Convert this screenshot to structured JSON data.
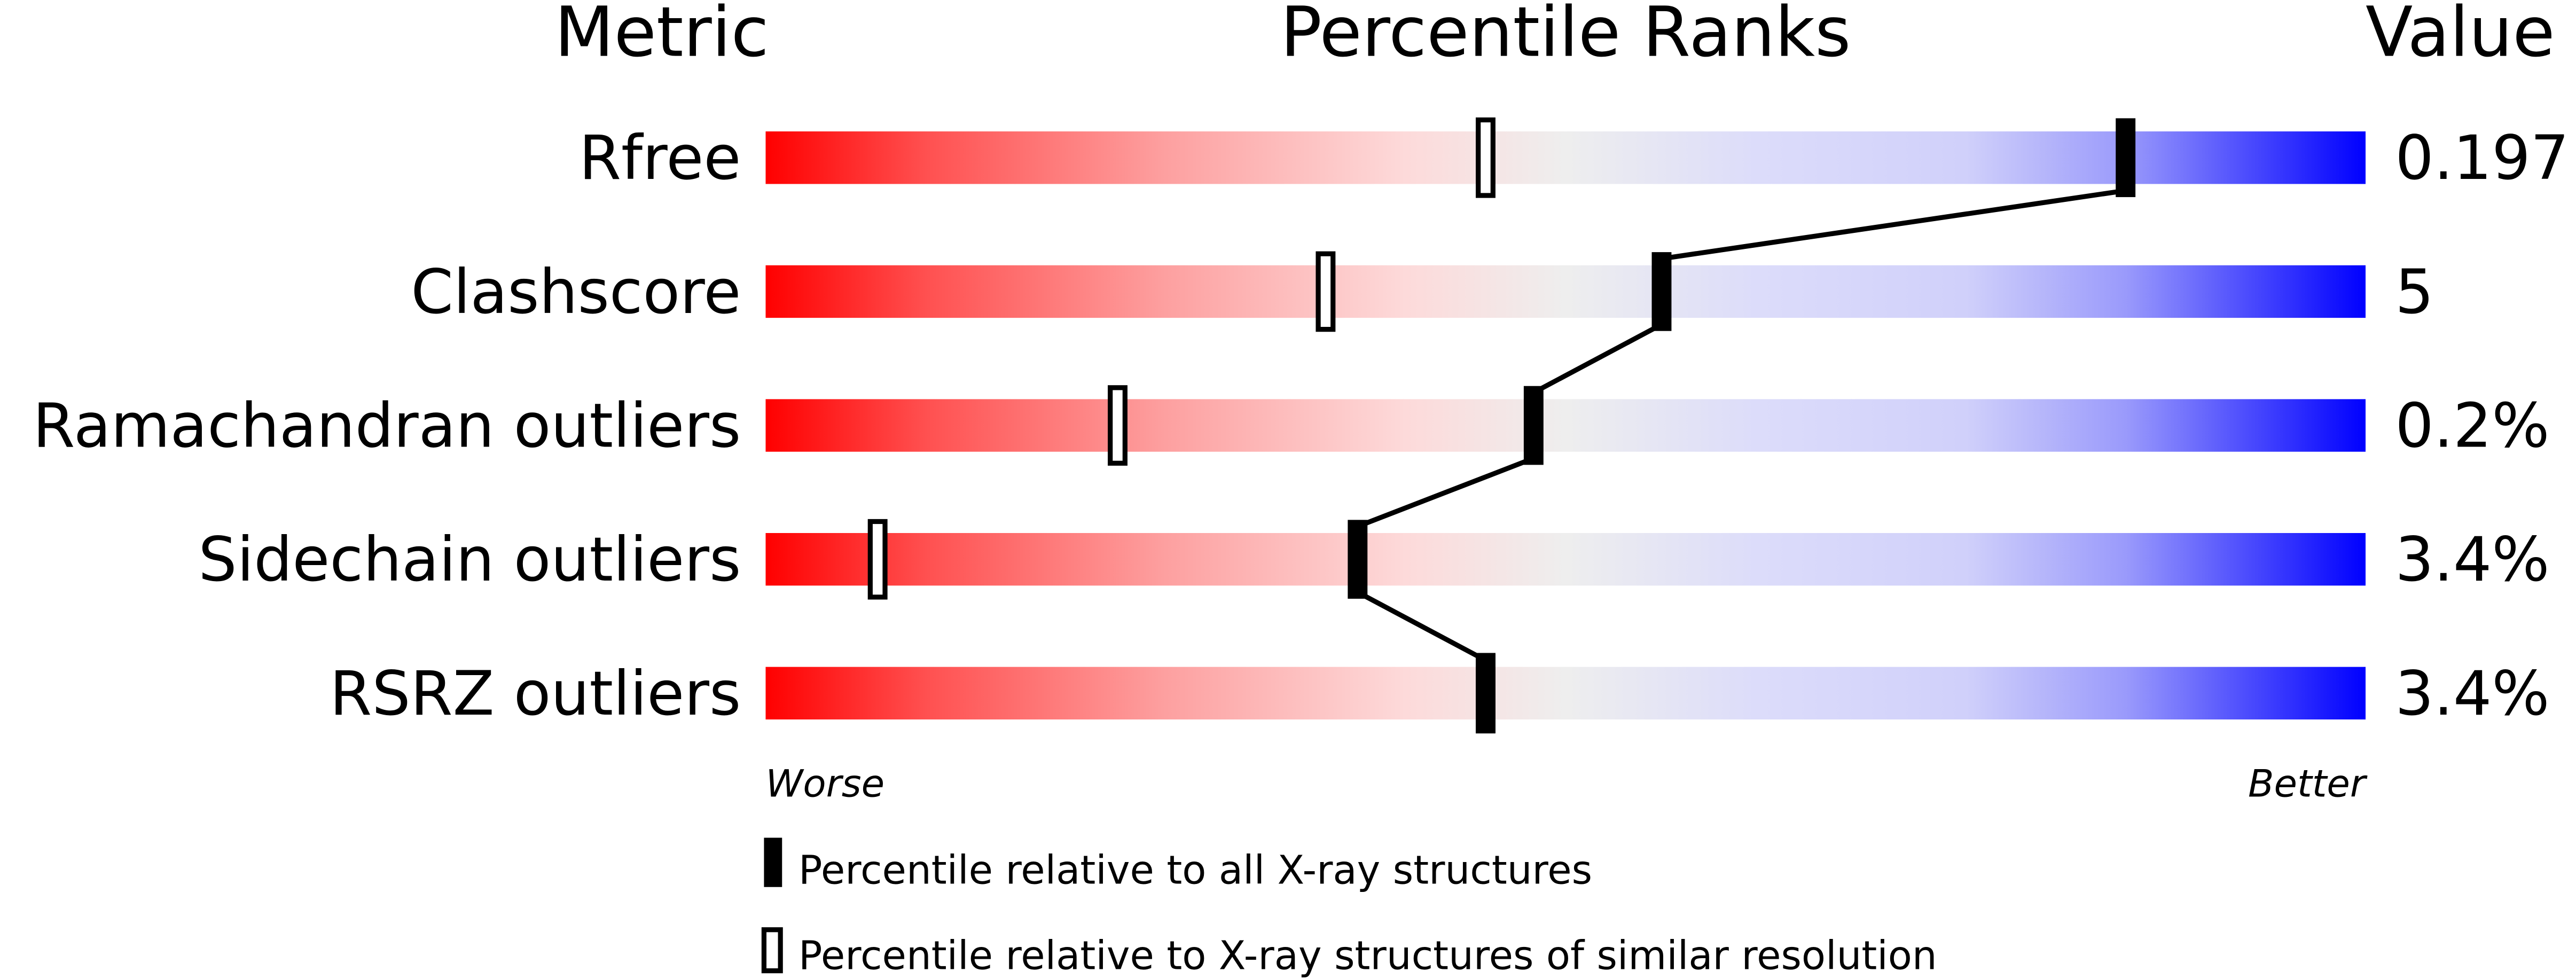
{
  "chart_data": {
    "type": "percentile-bar",
    "headers": {
      "metric": "Metric",
      "ranks": "Percentile Ranks",
      "value": "Value"
    },
    "xlim": [
      0,
      100
    ],
    "axis_labels": {
      "left": "Worse",
      "right": "Better"
    },
    "colors": {
      "worse": "#ff0000",
      "middle": "#eeeeee",
      "better": "#0000ff",
      "marker": "#000000"
    },
    "metrics": [
      {
        "name": "Rfree",
        "value": "0.197",
        "percentile_all": 85,
        "percentile_similar": 45
      },
      {
        "name": "Clashscore",
        "value": "5",
        "percentile_all": 56,
        "percentile_similar": 35
      },
      {
        "name": "Ramachandran outliers",
        "value": "0.2%",
        "percentile_all": 48,
        "percentile_similar": 22
      },
      {
        "name": "Sidechain outliers",
        "value": "3.4%",
        "percentile_all": 37,
        "percentile_similar": 7
      },
      {
        "name": "RSRZ outliers",
        "value": "3.4%",
        "percentile_all": 45,
        "percentile_similar": 45
      }
    ],
    "legend": [
      {
        "marker": "filled",
        "label": "Percentile relative to all X-ray structures"
      },
      {
        "marker": "open",
        "label": "Percentile relative to X-ray structures of similar resolution"
      }
    ]
  }
}
